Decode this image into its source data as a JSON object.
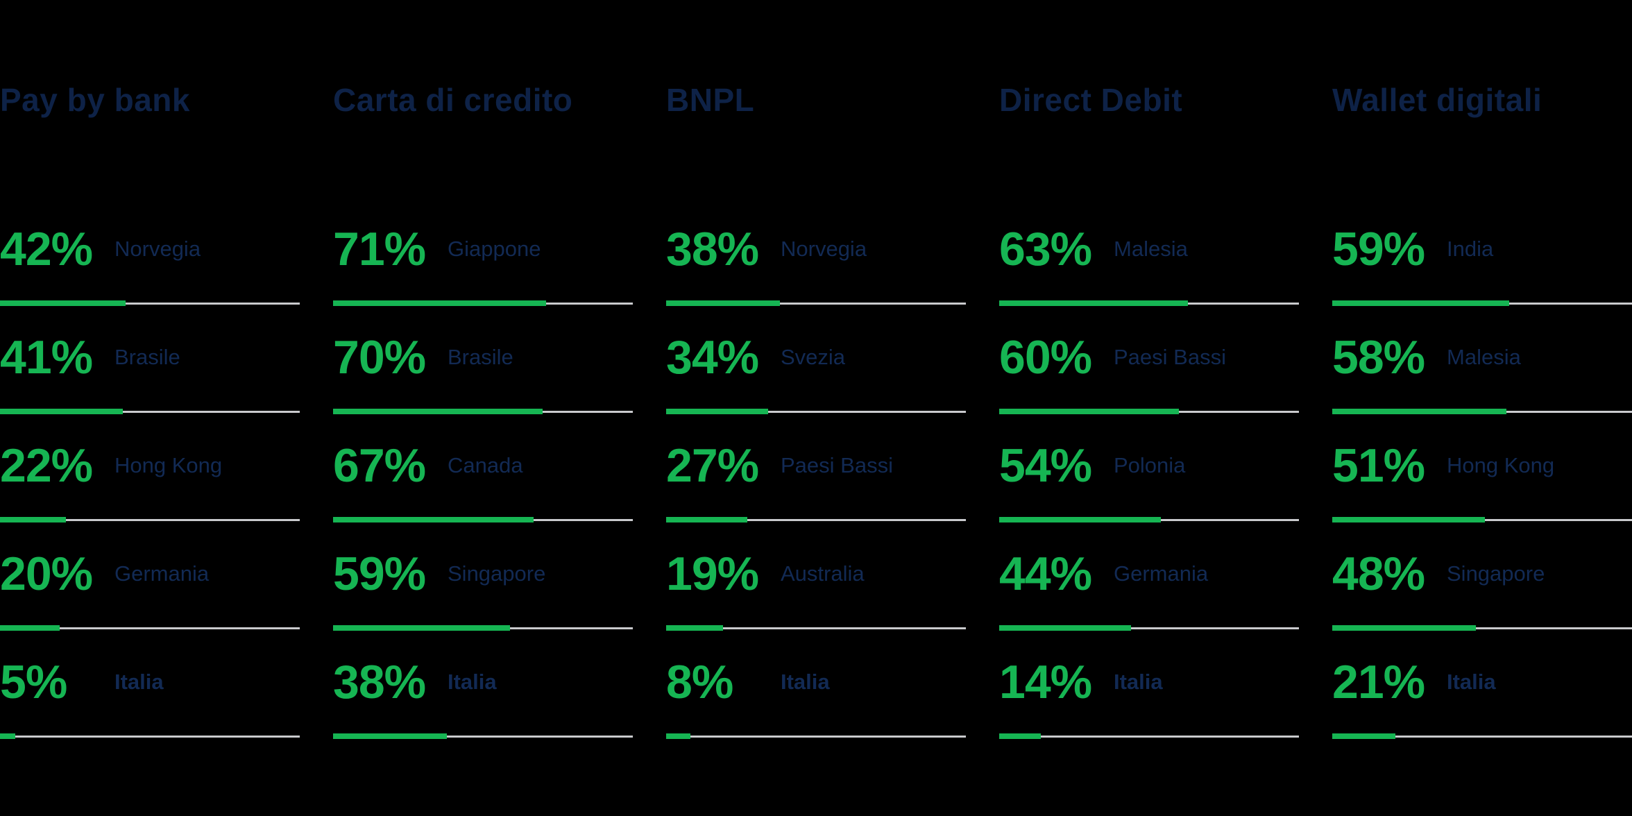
{
  "background": "#000000",
  "colors": {
    "accent_green": "#16b553",
    "navy_text": "#0e2247",
    "country_text": "#122a54",
    "track_gray": "#c9cacd"
  },
  "chart_data": {
    "type": "bar",
    "orientation": "horizontal",
    "unit": "%",
    "value_range": [
      0,
      100
    ],
    "grid": false,
    "legend": false,
    "title": "",
    "columns": [
      {
        "label": "Pay by bank",
        "rows": [
          {
            "pct": 42,
            "pct_label": "42%",
            "country": "Norvegia",
            "bold": false
          },
          {
            "pct": 41,
            "pct_label": "41%",
            "country": "Brasile",
            "bold": false
          },
          {
            "pct": 22,
            "pct_label": "22%",
            "country": "Hong Kong",
            "bold": false
          },
          {
            "pct": 20,
            "pct_label": "20%",
            "country": "Germania",
            "bold": false
          },
          {
            "pct": 5,
            "pct_label": "5%",
            "country": "Italia",
            "bold": true
          }
        ]
      },
      {
        "label": "Carta di credito",
        "rows": [
          {
            "pct": 71,
            "pct_label": "71%",
            "country": "Giappone",
            "bold": false
          },
          {
            "pct": 70,
            "pct_label": "70%",
            "country": "Brasile",
            "bold": false
          },
          {
            "pct": 67,
            "pct_label": "67%",
            "country": "Canada",
            "bold": false
          },
          {
            "pct": 59,
            "pct_label": "59%",
            "country": "Singapore",
            "bold": false
          },
          {
            "pct": 38,
            "pct_label": "38%",
            "country": "Italia",
            "bold": true
          }
        ]
      },
      {
        "label": "BNPL",
        "rows": [
          {
            "pct": 38,
            "pct_label": "38%",
            "country": "Norvegia",
            "bold": false
          },
          {
            "pct": 34,
            "pct_label": "34%",
            "country": "Svezia",
            "bold": false
          },
          {
            "pct": 27,
            "pct_label": "27%",
            "country": "Paesi Bassi",
            "bold": false
          },
          {
            "pct": 19,
            "pct_label": "19%",
            "country": "Australia",
            "bold": false
          },
          {
            "pct": 8,
            "pct_label": "8%",
            "country": "Italia",
            "bold": true
          }
        ]
      },
      {
        "label": "Direct Debit",
        "rows": [
          {
            "pct": 63,
            "pct_label": "63%",
            "country": "Malesia",
            "bold": false
          },
          {
            "pct": 60,
            "pct_label": "60%",
            "country": "Paesi Bassi",
            "bold": false
          },
          {
            "pct": 54,
            "pct_label": "54%",
            "country": "Polonia",
            "bold": false
          },
          {
            "pct": 44,
            "pct_label": "44%",
            "country": "Germania",
            "bold": false
          },
          {
            "pct": 14,
            "pct_label": "14%",
            "country": "Italia",
            "bold": true
          }
        ]
      },
      {
        "label": "Wallet digitali",
        "rows": [
          {
            "pct": 59,
            "pct_label": "59%",
            "country": "India",
            "bold": false
          },
          {
            "pct": 58,
            "pct_label": "58%",
            "country": "Malesia",
            "bold": false
          },
          {
            "pct": 51,
            "pct_label": "51%",
            "country": "Hong Kong",
            "bold": false
          },
          {
            "pct": 48,
            "pct_label": "48%",
            "country": "Singapore",
            "bold": false
          },
          {
            "pct": 21,
            "pct_label": "21%",
            "country": "Italia",
            "bold": true
          }
        ]
      }
    ]
  }
}
